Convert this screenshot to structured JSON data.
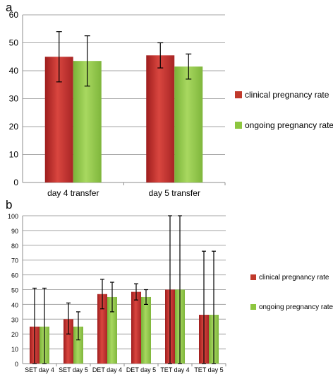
{
  "chart_data": [
    {
      "type": "bar",
      "panel_label": "a",
      "categories": [
        "day 4 transfer",
        "day 5 transfer"
      ],
      "series": [
        {
          "name": "clinical pregnancy rate",
          "values": [
            45,
            45.5
          ],
          "error_low": [
            36,
            41
          ],
          "error_high": [
            54,
            50
          ],
          "color": "#c0392b"
        },
        {
          "name": "ongoing pregnancy rate",
          "values": [
            43.5,
            41.5
          ],
          "error_low": [
            34.5,
            37
          ],
          "error_high": [
            52.5,
            46
          ],
          "color": "#8dc63f"
        }
      ],
      "ylim": [
        0,
        60
      ],
      "yticks": [
        0,
        10,
        20,
        30,
        40,
        50,
        60
      ],
      "grid": true,
      "legend_position": "right"
    },
    {
      "type": "bar",
      "panel_label": "b",
      "categories": [
        "SET day 4",
        "SET day 5",
        "DET day 4",
        "DET day 5",
        "TET day 4",
        "TET day 5"
      ],
      "series": [
        {
          "name": "clinical pregnancy rate",
          "values": [
            25,
            30,
            47,
            48.5,
            50,
            33
          ],
          "error_low": [
            0,
            20,
            37,
            43,
            0,
            0
          ],
          "error_high": [
            51,
            41,
            57,
            54,
            100,
            76
          ],
          "color": "#c0392b"
        },
        {
          "name": "ongoing pregnancy rate",
          "values": [
            25,
            25,
            45,
            45,
            50,
            33
          ],
          "error_low": [
            0,
            16,
            35,
            40,
            0,
            0
          ],
          "error_high": [
            51,
            35,
            55,
            50,
            100,
            76
          ],
          "color": "#8dc63f"
        }
      ],
      "ylim": [
        0,
        100
      ],
      "yticks": [
        0,
        10,
        20,
        30,
        40,
        50,
        60,
        70,
        80,
        90,
        100
      ],
      "grid": true,
      "legend_position": "right"
    }
  ]
}
